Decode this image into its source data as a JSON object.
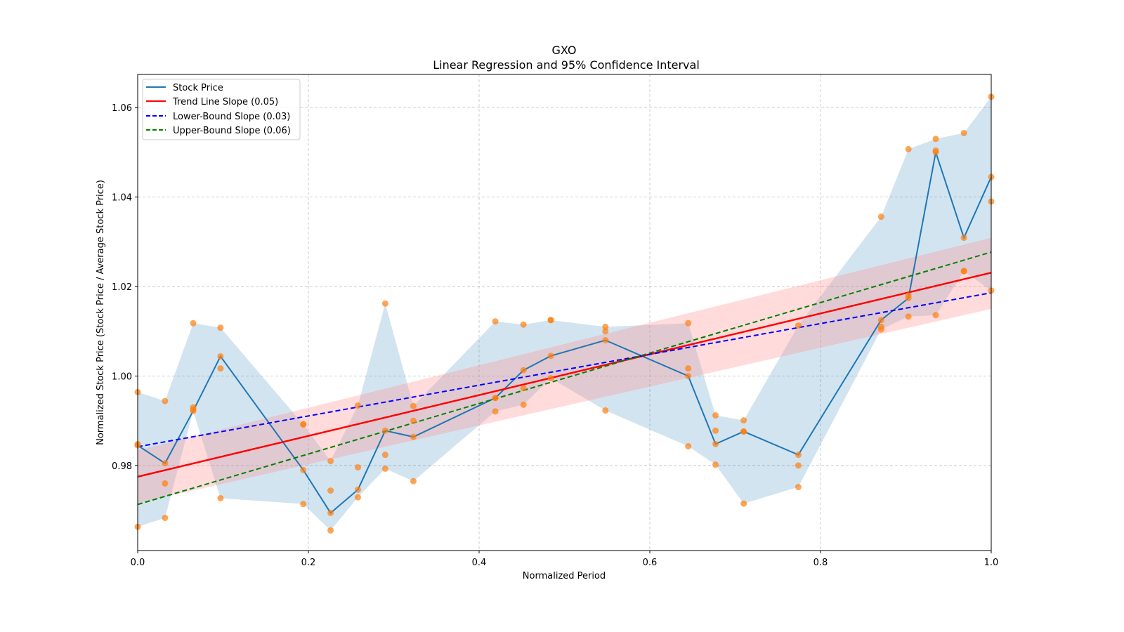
{
  "chart_data": {
    "type": "line",
    "title": "GXO",
    "subtitle": "Linear Regression and 95% Confidence Interval",
    "xlabel": "Normalized Period",
    "ylabel": "Normalized Stock Price (Stock Price / Average Stock Price)",
    "xlim": [
      0.0,
      1.0
    ],
    "ylim": [
      0.961,
      1.0674
    ],
    "x_ticks": [
      0.0,
      0.2,
      0.4,
      0.6,
      0.8,
      1.0
    ],
    "x_tick_labels": [
      "0.0",
      "0.2",
      "0.4",
      "0.6",
      "0.8",
      "1.0"
    ],
    "y_ticks": [
      0.98,
      1.0,
      1.02,
      1.04,
      1.06
    ],
    "y_tick_labels": [
      "0.98",
      "1.00",
      "1.02",
      "1.04",
      "1.06"
    ],
    "grid": true,
    "legend_position": "upper-left",
    "legend": [
      {
        "label": "Stock Price",
        "color": "#1f77b4",
        "style": "solid"
      },
      {
        "label": "Trend Line Slope (0.05)",
        "color": "#ff0000",
        "style": "solid"
      },
      {
        "label": "Lower-Bound Slope (0.03)",
        "color": "#0000ff",
        "style": "dashed"
      },
      {
        "label": "Upper-Bound Slope (0.06)",
        "color": "#008000",
        "style": "dashed"
      }
    ],
    "colors": {
      "stock": "#1f77b4",
      "scatter": "#ff7f0e",
      "band": "#1f77b4",
      "trend": "#ff0000",
      "trend_ci": "#ff9999",
      "lower": "#0000ff",
      "upper": "#008000"
    },
    "x": [
      0.0,
      0.032,
      0.065,
      0.097,
      0.194,
      0.226,
      0.258,
      0.29,
      0.323,
      0.419,
      0.452,
      0.484,
      0.548,
      0.645,
      0.677,
      0.71,
      0.774,
      0.871,
      0.903,
      0.935,
      0.968,
      1.0
    ],
    "stock_price": [
      0.9845,
      0.9805,
      0.9922,
      1.0044,
      0.979,
      0.9694,
      0.9746,
      0.9878,
      0.9864,
      0.9951,
      1.0013,
      1.0045,
      1.008,
      1.0,
      0.9848,
      0.9876,
      0.9824,
      1.0125,
      1.0174,
      1.05,
      1.0309,
      1.0445
    ],
    "scatter_points": [
      [
        0.9964,
        0.9848,
        0.9845,
        0.9663
      ],
      [
        0.9944,
        0.9805,
        0.976,
        0.9683
      ],
      [
        1.0118,
        0.993,
        0.9925,
        0.9922
      ],
      [
        1.0108,
        1.0044,
        1.0017,
        0.9727
      ],
      [
        0.9892,
        0.9892,
        0.979,
        0.9714
      ],
      [
        0.981,
        0.9744,
        0.9694,
        0.9655
      ],
      [
        0.9934,
        0.9796,
        0.9746,
        0.9729
      ],
      [
        1.0162,
        0.9878,
        0.9824,
        0.9793
      ],
      [
        0.9933,
        0.99,
        0.9864,
        0.9765
      ],
      [
        1.0122,
        0.9951,
        0.9951,
        0.9921
      ],
      [
        1.0115,
        1.0013,
        0.9973,
        0.9936
      ],
      [
        1.0125,
        1.0125,
        1.0045,
        0.9995
      ],
      [
        1.011,
        1.01,
        1.008,
        0.9923
      ],
      [
        1.0118,
        1.0017,
        1.0,
        0.9843
      ],
      [
        0.9912,
        0.9878,
        0.9848,
        0.9802
      ],
      [
        0.9901,
        0.9876,
        0.9876,
        0.9715
      ],
      [
        1.0113,
        0.9824,
        0.98,
        0.9752
      ],
      [
        1.0356,
        1.0125,
        1.011,
        1.0104
      ],
      [
        1.0507,
        1.018,
        1.0174,
        1.0133
      ],
      [
        1.053,
        1.0504,
        1.05,
        1.0136
      ],
      [
        1.0543,
        1.0309,
        1.0235,
        1.0234
      ],
      [
        1.0624,
        1.0445,
        1.039,
        1.0191
      ]
    ],
    "trend_line": {
      "x": [
        0.0,
        1.0
      ],
      "y": [
        0.9775,
        1.0231
      ]
    },
    "trend_ci": {
      "x": [
        0.0,
        1.0
      ],
      "lower": [
        0.9716,
        1.015
      ],
      "upper": [
        0.9834,
        1.0309
      ]
    },
    "lower_bound_line": {
      "x": [
        0.0,
        1.0
      ],
      "y": [
        0.9842,
        1.0186
      ]
    },
    "upper_bound_line": {
      "x": [
        0.0,
        1.0
      ],
      "y": [
        0.9713,
        1.0277
      ]
    }
  }
}
